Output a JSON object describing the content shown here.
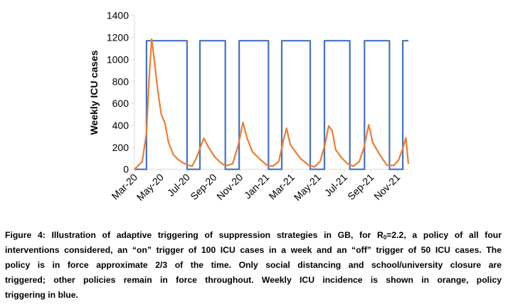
{
  "chart_data": {
    "type": "line",
    "title": "",
    "xlabel": "",
    "ylabel": "Weekly ICU cases",
    "ylim": [
      0,
      1400
    ],
    "yticks": [
      "0",
      "200",
      "400",
      "600",
      "800",
      "1000",
      "1200",
      "1400"
    ],
    "xlim": [
      "2020-03-01",
      "2021-11-27"
    ],
    "xticks": [
      {
        "label": "Mar-20",
        "date": "2020-03-01"
      },
      {
        "label": "May-20",
        "date": "2020-05-01"
      },
      {
        "label": "Jul-20",
        "date": "2020-07-01"
      },
      {
        "label": "Sep-20",
        "date": "2020-09-01"
      },
      {
        "label": "Nov-20",
        "date": "2020-11-01"
      },
      {
        "label": "Jan-21",
        "date": "2021-01-01"
      },
      {
        "label": "Mar-21",
        "date": "2021-03-01"
      },
      {
        "label": "May-21",
        "date": "2021-05-01"
      },
      {
        "label": "Jul-21",
        "date": "2021-07-01"
      },
      {
        "label": "Sep-21",
        "date": "2021-09-01"
      },
      {
        "label": "Nov-21",
        "date": "2021-11-01"
      }
    ],
    "grid": false,
    "legend": "none",
    "series": [
      {
        "color": "#4472C4",
        "kind": "step",
        "points": [
          [
            "2020-03-01",
            0
          ],
          [
            "2020-03-29",
            0
          ],
          [
            "2020-03-29",
            1170
          ],
          [
            "2020-07-01",
            1170
          ],
          [
            "2020-07-01",
            0
          ],
          [
            "2020-07-31",
            0
          ],
          [
            "2020-07-31",
            1170
          ],
          [
            "2020-09-28",
            1170
          ],
          [
            "2020-09-28",
            0
          ],
          [
            "2020-10-30",
            0
          ],
          [
            "2020-10-30",
            1170
          ],
          [
            "2021-01-06",
            1170
          ],
          [
            "2021-01-06",
            0
          ],
          [
            "2021-02-06",
            0
          ],
          [
            "2021-02-06",
            1170
          ],
          [
            "2021-04-13",
            1170
          ],
          [
            "2021-04-13",
            0
          ],
          [
            "2021-05-16",
            0
          ],
          [
            "2021-05-16",
            1170
          ],
          [
            "2021-07-14",
            1170
          ],
          [
            "2021-07-14",
            0
          ],
          [
            "2021-08-17",
            0
          ],
          [
            "2021-08-17",
            1170
          ],
          [
            "2021-10-14",
            1170
          ],
          [
            "2021-10-14",
            0
          ],
          [
            "2021-11-14",
            0
          ],
          [
            "2021-11-14",
            1170
          ],
          [
            "2021-11-27",
            1170
          ]
        ]
      },
      {
        "color": "#ED7D31",
        "kind": "line",
        "points": [
          [
            "2020-03-01",
            0
          ],
          [
            "2020-03-19",
            70
          ],
          [
            "2020-03-29",
            330
          ],
          [
            "2020-04-04",
            830
          ],
          [
            "2020-04-10",
            1185
          ],
          [
            "2020-04-16",
            1000
          ],
          [
            "2020-04-24",
            720
          ],
          [
            "2020-05-02",
            505
          ],
          [
            "2020-05-11",
            415
          ],
          [
            "2020-05-19",
            245
          ],
          [
            "2020-05-30",
            135
          ],
          [
            "2020-06-10",
            90
          ],
          [
            "2020-06-21",
            60
          ],
          [
            "2020-07-02",
            40
          ],
          [
            "2020-07-13",
            28
          ],
          [
            "2020-07-24",
            115
          ],
          [
            "2020-08-01",
            200
          ],
          [
            "2020-08-09",
            283
          ],
          [
            "2020-08-20",
            200
          ],
          [
            "2020-09-03",
            115
          ],
          [
            "2020-09-17",
            60
          ],
          [
            "2020-09-28",
            32
          ],
          [
            "2020-10-15",
            50
          ],
          [
            "2020-10-28",
            222
          ],
          [
            "2020-11-08",
            428
          ],
          [
            "2020-11-17",
            287
          ],
          [
            "2020-11-30",
            158
          ],
          [
            "2020-12-17",
            93
          ],
          [
            "2021-01-02",
            39
          ],
          [
            "2021-01-16",
            28
          ],
          [
            "2021-01-30",
            71
          ],
          [
            "2021-02-10",
            265
          ],
          [
            "2021-02-17",
            374
          ],
          [
            "2021-02-26",
            222
          ],
          [
            "2021-03-10",
            158
          ],
          [
            "2021-03-23",
            93
          ],
          [
            "2021-04-09",
            39
          ],
          [
            "2021-04-23",
            22
          ],
          [
            "2021-05-06",
            71
          ],
          [
            "2021-05-17",
            222
          ],
          [
            "2021-05-26",
            395
          ],
          [
            "2021-06-03",
            352
          ],
          [
            "2021-06-11",
            180
          ],
          [
            "2021-06-25",
            104
          ],
          [
            "2021-07-09",
            50
          ],
          [
            "2021-07-22",
            28
          ],
          [
            "2021-08-05",
            71
          ],
          [
            "2021-08-16",
            200
          ],
          [
            "2021-08-27",
            406
          ],
          [
            "2021-09-05",
            245
          ],
          [
            "2021-09-21",
            136
          ],
          [
            "2021-10-08",
            39
          ],
          [
            "2021-10-24",
            35
          ],
          [
            "2021-11-04",
            82
          ],
          [
            "2021-11-15",
            200
          ],
          [
            "2021-11-21",
            287
          ],
          [
            "2021-11-27",
            50
          ]
        ]
      }
    ]
  },
  "caption": {
    "line1_pre": "Figure 4: Illustration of adaptive triggering of suppression strategies in GB, for R",
    "line1_sub": "0",
    "line1_post": "=2.2, a policy of all four",
    "line2": "interventions considered, an “on” trigger of 100 ICU cases in a week and an “off” trigger of 50 ICU cases.  The",
    "line3": "policy is in force approximate 2/3 of the time. Only social distancing and school/university closure are",
    "line4": "triggered; other policies remain in force throughout. Weekly ICU incidence is shown in orange, policy",
    "line5": "triggering in blue."
  }
}
